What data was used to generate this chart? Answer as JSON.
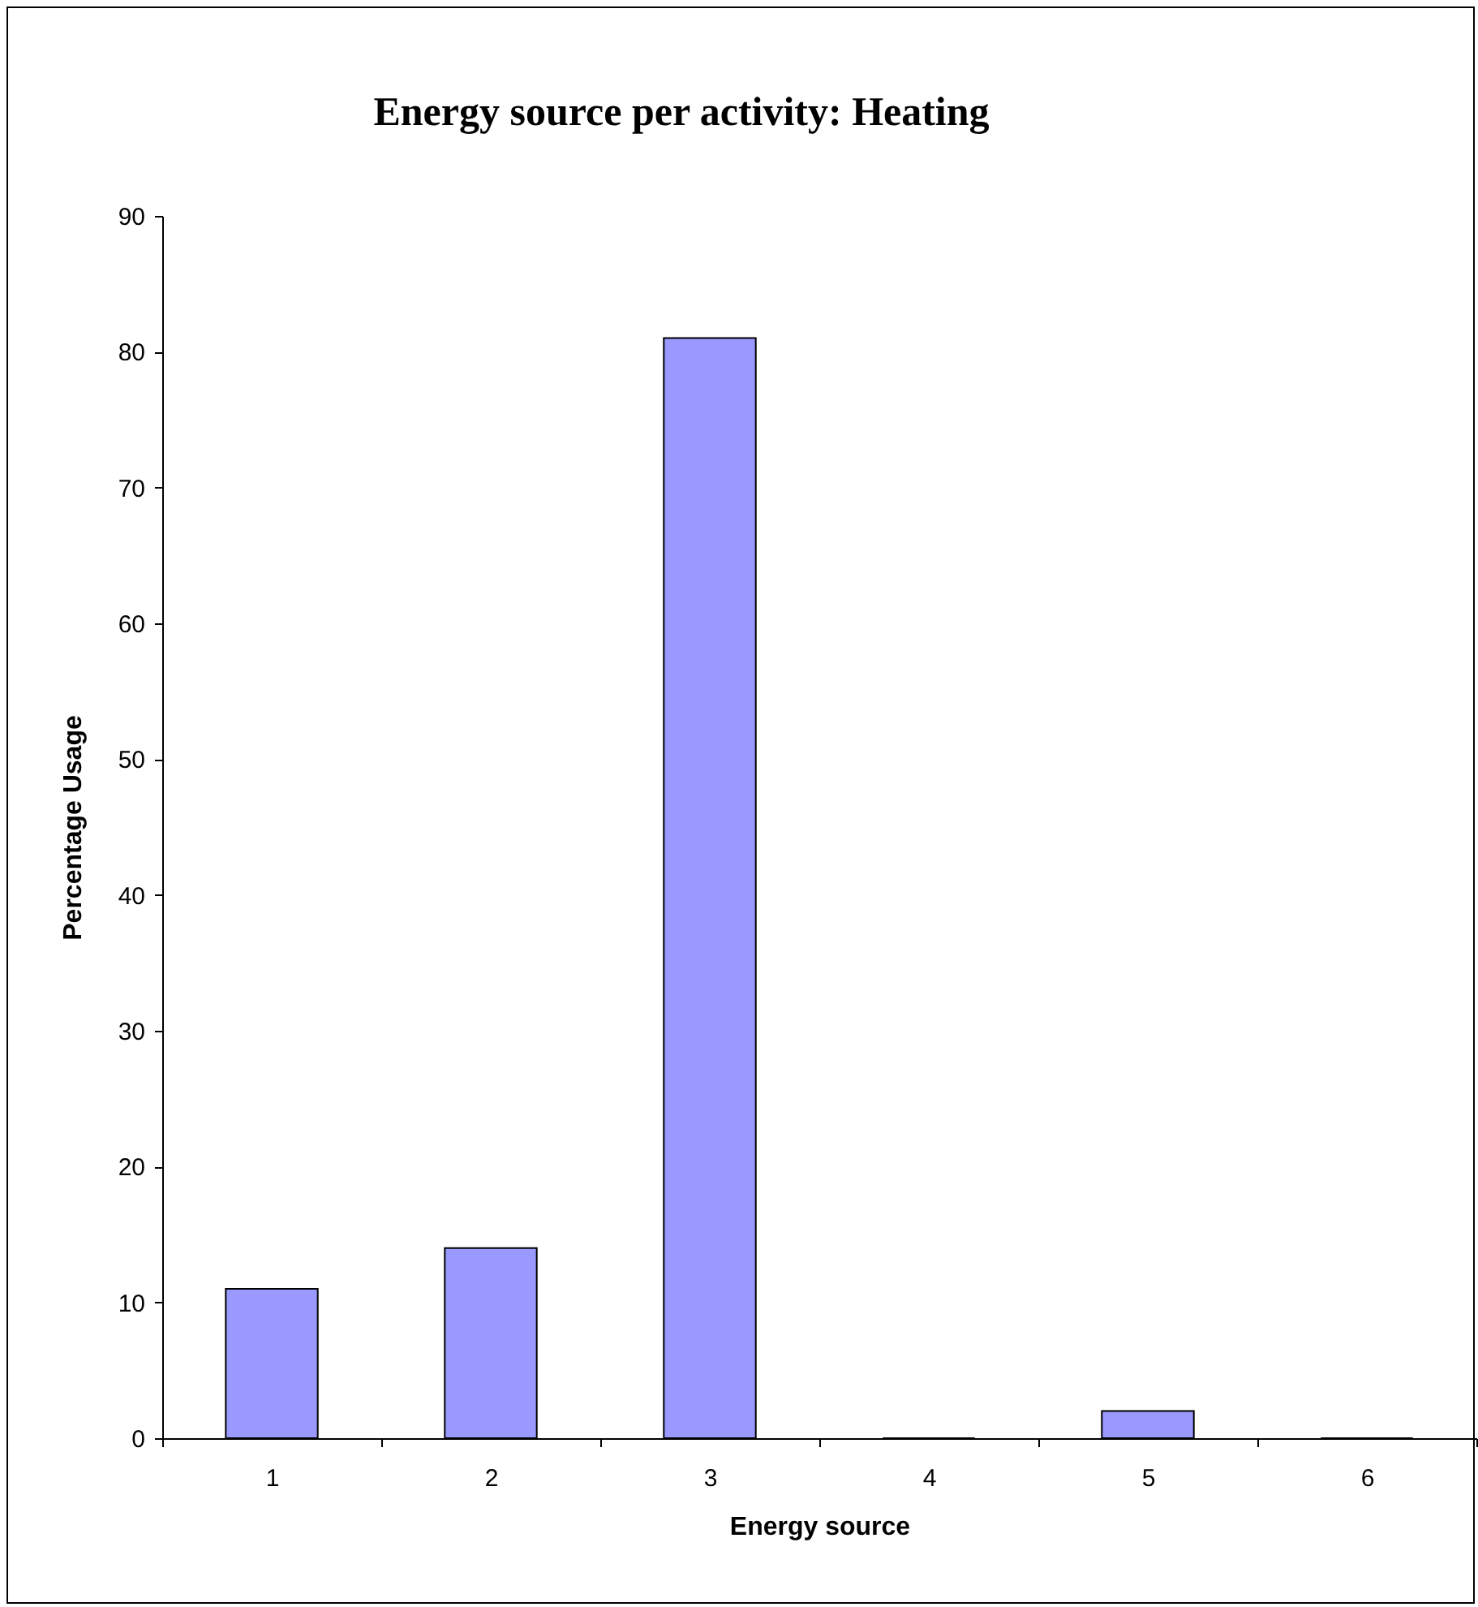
{
  "chart_data": {
    "type": "bar",
    "title": "Energy source per activity: Heating",
    "xlabel": "Energy source",
    "ylabel": "Percentage Usage",
    "categories": [
      "1",
      "2",
      "3",
      "4",
      "5",
      "6"
    ],
    "values": [
      11,
      14,
      81,
      0,
      2,
      0
    ],
    "color": "#9999ff",
    "ylim": [
      0,
      90
    ],
    "yticks": [
      0,
      10,
      20,
      30,
      40,
      50,
      60,
      70,
      80,
      90
    ],
    "grid": false
  }
}
